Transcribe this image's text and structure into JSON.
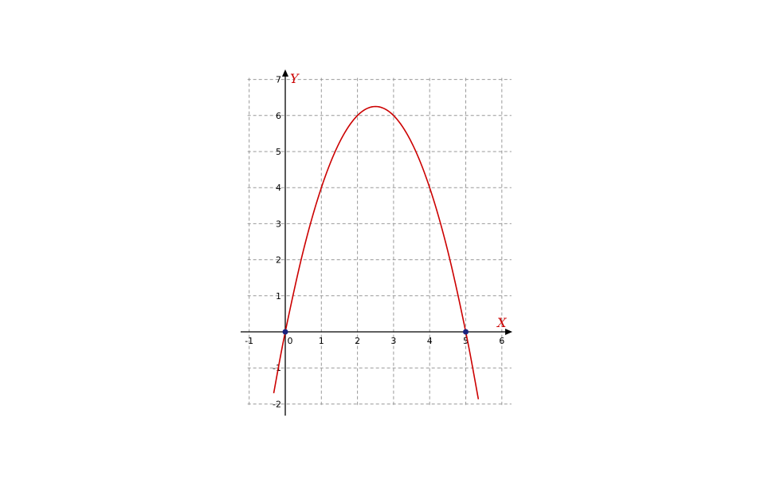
{
  "chart_data": {
    "type": "line",
    "title": "",
    "xlabel": "X",
    "ylabel": "Y",
    "xlim": [
      -1,
      6
    ],
    "ylim": [
      -2,
      7
    ],
    "x_ticks": [
      "-1",
      "0",
      "1",
      "2",
      "3",
      "4",
      "5",
      "6"
    ],
    "y_ticks": [
      "-2",
      "-1",
      "1",
      "2",
      "3",
      "4",
      "5",
      "6",
      "7"
    ],
    "grid": true,
    "series": [
      {
        "x": [
          -0.32,
          0,
          0.5,
          1,
          1.5,
          2,
          2.5,
          3,
          3.5,
          4,
          4.5,
          5,
          5.35
        ],
        "y": [
          -1.7,
          0,
          2.25,
          4.0,
          5.25,
          6.0,
          6.25,
          6.0,
          5.25,
          4.0,
          2.25,
          0,
          -1.87
        ],
        "color": "#cc0000"
      }
    ],
    "points": [
      {
        "x": 0,
        "y": 0
      },
      {
        "x": 5,
        "y": 0
      }
    ],
    "colors": {
      "curve": "#cc0000",
      "points": "#1a237e",
      "label": "#cc0000"
    }
  }
}
